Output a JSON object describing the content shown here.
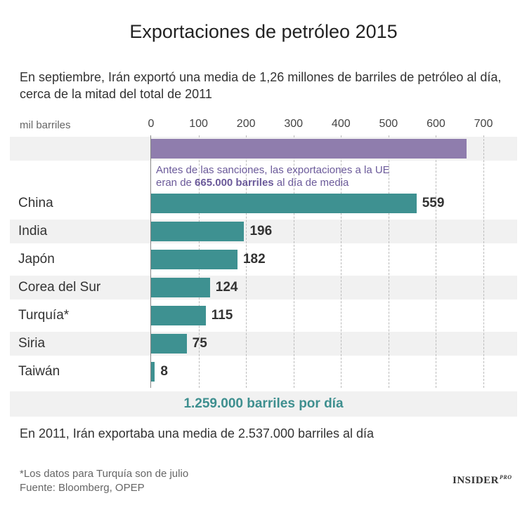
{
  "chart_data": {
    "type": "bar",
    "orientation": "horizontal",
    "title": "Exportaciones de petróleo 2015",
    "subtitle": "En septiembre, Irán exportó una media de 1,26 millones de barriles de petróleo al día, cerca de la mitad del total de 2011",
    "xlabel": "mil barriles",
    "xlim": [
      0,
      700
    ],
    "ticks": [
      "0",
      "100",
      "200",
      "300",
      "400",
      "500",
      "600",
      "700"
    ],
    "reference": {
      "name": "UE",
      "value": 665,
      "note_plain_1": "Antes de las sanciones, las exportaciones a la UE",
      "note_plain_2": "eran de ",
      "note_bold": "665.000 barriles",
      "note_plain_3": " al día de media",
      "color": "#8f7dad"
    },
    "categories": [
      "China",
      "India",
      "Japón",
      "Corea del Sur",
      "Turquía*",
      "Siria",
      "Taiwán"
    ],
    "values": [
      559,
      196,
      182,
      124,
      115,
      75,
      8
    ],
    "value_labels": [
      "559",
      "196",
      "182",
      "124",
      "115",
      "75",
      "8"
    ],
    "bar_color": "#3e9191",
    "total_label": "1.259.000 barriles por día"
  },
  "footer": {
    "comparison": "En 2011, Irán exportaba una media de 2.537.000 barriles al día",
    "note": "*Los datos para Turquía son de julio",
    "source": "Fuente: Bloomberg, OPEP",
    "logo_main": "INSIDER",
    "logo_sup": "PRO"
  }
}
